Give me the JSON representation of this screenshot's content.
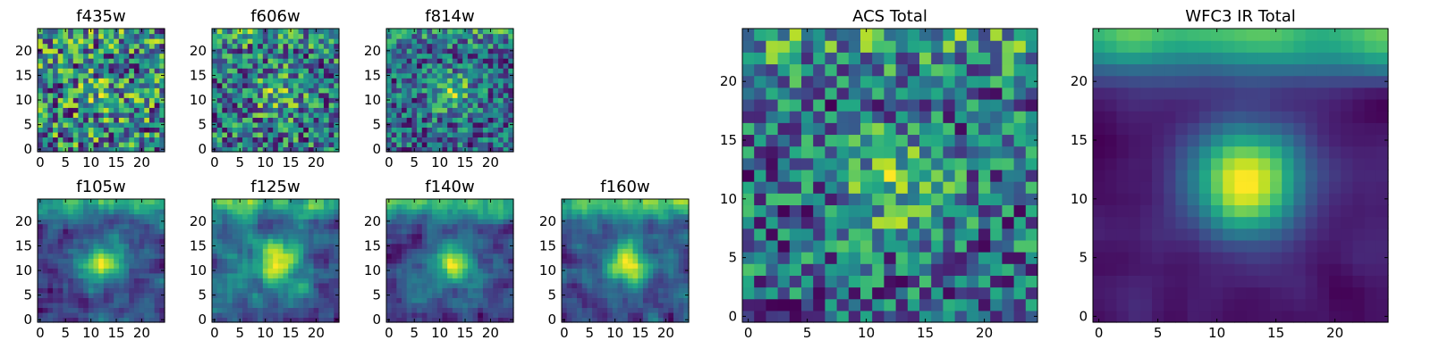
{
  "chart_data": [
    {
      "type": "heatmap",
      "title": "f435w",
      "grid_size": 25,
      "xlim": [
        0,
        24
      ],
      "ylim": [
        0,
        24
      ],
      "xticks": [
        0,
        5,
        10,
        15,
        20
      ],
      "yticks": [
        0,
        5,
        10,
        15,
        20
      ],
      "colormap": "viridis",
      "peak_strength": 0.15,
      "top_glow": 0.05,
      "noise": 0.65,
      "seed": 11
    },
    {
      "type": "heatmap",
      "title": "f606w",
      "grid_size": 25,
      "xlim": [
        0,
        24
      ],
      "ylim": [
        0,
        24
      ],
      "xticks": [
        0,
        5,
        10,
        15,
        20
      ],
      "yticks": [
        0,
        5,
        10,
        15,
        20
      ],
      "colormap": "viridis",
      "peak_strength": 0.3,
      "top_glow": 0.2,
      "noise": 0.6,
      "seed": 23
    },
    {
      "type": "heatmap",
      "title": "f814w",
      "grid_size": 25,
      "xlim": [
        0,
        24
      ],
      "ylim": [
        0,
        24
      ],
      "xticks": [
        0,
        5,
        10,
        15,
        20
      ],
      "yticks": [
        0,
        5,
        10,
        15,
        20
      ],
      "colormap": "viridis",
      "peak_strength": 0.45,
      "top_glow": 0.3,
      "noise": 0.55,
      "seed": 37
    },
    {
      "type": "heatmap",
      "title": "f105w",
      "grid_size": 25,
      "xlim": [
        0,
        24
      ],
      "ylim": [
        0,
        24
      ],
      "xticks": [
        0,
        5,
        10,
        15,
        20
      ],
      "yticks": [
        0,
        5,
        10,
        15,
        20
      ],
      "colormap": "viridis",
      "peak_strength": 0.55,
      "top_glow": 0.45,
      "noise": 0.45,
      "seed": 41
    },
    {
      "type": "heatmap",
      "title": "f125w",
      "grid_size": 25,
      "xlim": [
        0,
        24
      ],
      "ylim": [
        0,
        24
      ],
      "xticks": [
        0,
        5,
        10,
        15,
        20
      ],
      "yticks": [
        0,
        5,
        10,
        15,
        20
      ],
      "colormap": "viridis",
      "peak_strength": 0.5,
      "top_glow": 0.45,
      "noise": 0.45,
      "seed": 53
    },
    {
      "type": "heatmap",
      "title": "f140w",
      "grid_size": 25,
      "xlim": [
        0,
        24
      ],
      "ylim": [
        0,
        24
      ],
      "xticks": [
        0,
        5,
        10,
        15,
        20
      ],
      "yticks": [
        0,
        5,
        10,
        15,
        20
      ],
      "colormap": "viridis",
      "peak_strength": 0.5,
      "top_glow": 0.5,
      "noise": 0.45,
      "seed": 67
    },
    {
      "type": "heatmap",
      "title": "f160w",
      "grid_size": 25,
      "xlim": [
        0,
        24
      ],
      "ylim": [
        0,
        24
      ],
      "xticks": [
        0,
        5,
        10,
        15,
        20
      ],
      "yticks": [
        0,
        5,
        10,
        15,
        20
      ],
      "colormap": "viridis",
      "peak_strength": 0.55,
      "top_glow": 0.5,
      "noise": 0.4,
      "seed": 79
    },
    {
      "type": "heatmap",
      "title": "ACS Total",
      "grid_size": 25,
      "xlim": [
        0,
        24
      ],
      "ylim": [
        0,
        24
      ],
      "xticks": [
        0,
        5,
        10,
        15,
        20
      ],
      "yticks": [
        0,
        5,
        10,
        15,
        20
      ],
      "colormap": "viridis",
      "peak_strength": 0.35,
      "top_glow": 0.3,
      "noise": 0.5,
      "seed": 97
    },
    {
      "type": "heatmap",
      "title": "WFC3 IR Total",
      "grid_size": 25,
      "xlim": [
        0,
        24
      ],
      "ylim": [
        0,
        24
      ],
      "xticks": [
        0,
        5,
        10,
        15,
        20
      ],
      "yticks": [
        0,
        5,
        10,
        15,
        20
      ],
      "colormap": "viridis",
      "peak_strength": 0.8,
      "top_glow": 0.75,
      "noise": 0.2,
      "seed": 113
    }
  ]
}
